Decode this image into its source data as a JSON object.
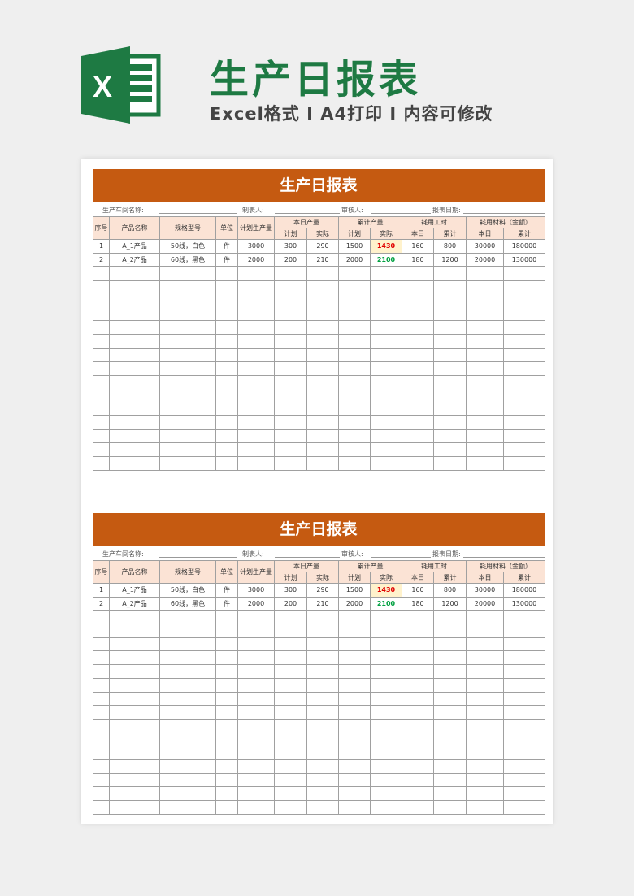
{
  "header": {
    "title": "生产日报表",
    "subtitle": "Excel格式 I A4打印 I 内容可修改",
    "logo_letter": "X"
  },
  "colors": {
    "brand_green": "#1e7a43",
    "bar": "#c55a11",
    "header_fill": "#fbe3d5",
    "highlight_red": "#e00000",
    "highlight_green": "#00a040"
  },
  "sheets": [
    {
      "title": "生产日报表",
      "info": {
        "workshop": "生产车间名称:",
        "maker": "制表人:",
        "reviewer": "审核人:",
        "date": "报表日期:"
      },
      "head": {
        "seq": "序号",
        "name": "产品名称",
        "spec": "规格型号",
        "unit": "单位",
        "plan": "计划生产量",
        "today": "本日产量",
        "cum": "累计产量",
        "hours": "耗用工时",
        "material": "耗用材料（金额）",
        "sub": [
          "计划",
          "实际",
          "计划",
          "实际",
          "本日",
          "累计",
          "本日",
          "累计"
        ]
      },
      "rows": [
        [
          "1",
          "A_1产品",
          "50线，白色",
          "件",
          "3000",
          "300",
          "290",
          "1500",
          "1430",
          "160",
          "800",
          "30000",
          "180000"
        ],
        [
          "2",
          "A_2产品",
          "60线，黑色",
          "件",
          "2000",
          "200",
          "210",
          "2000",
          "2100",
          "180",
          "1200",
          "20000",
          "130000"
        ]
      ]
    },
    {
      "title": "生产日报表",
      "info": {
        "workshop": "生产车间名称:",
        "maker": "制表人:",
        "reviewer": "审核人:",
        "date": "报表日期:"
      },
      "head": {
        "seq": "序号",
        "name": "产品名称",
        "spec": "规格型号",
        "unit": "单位",
        "plan": "计划生产量",
        "today": "本日产量",
        "cum": "累计产量",
        "hours": "耗用工时",
        "material": "耗用材料（金额）",
        "sub": [
          "计划",
          "实际",
          "计划",
          "实际",
          "本日",
          "累计",
          "本日",
          "累计"
        ]
      },
      "rows": [
        [
          "1",
          "A_1产品",
          "50线，白色",
          "件",
          "3000",
          "300",
          "290",
          "1500",
          "1430",
          "160",
          "800",
          "30000",
          "180000"
        ],
        [
          "2",
          "A_2产品",
          "60线，黑色",
          "件",
          "2000",
          "200",
          "210",
          "2000",
          "2100",
          "180",
          "1200",
          "20000",
          "130000"
        ]
      ]
    }
  ]
}
